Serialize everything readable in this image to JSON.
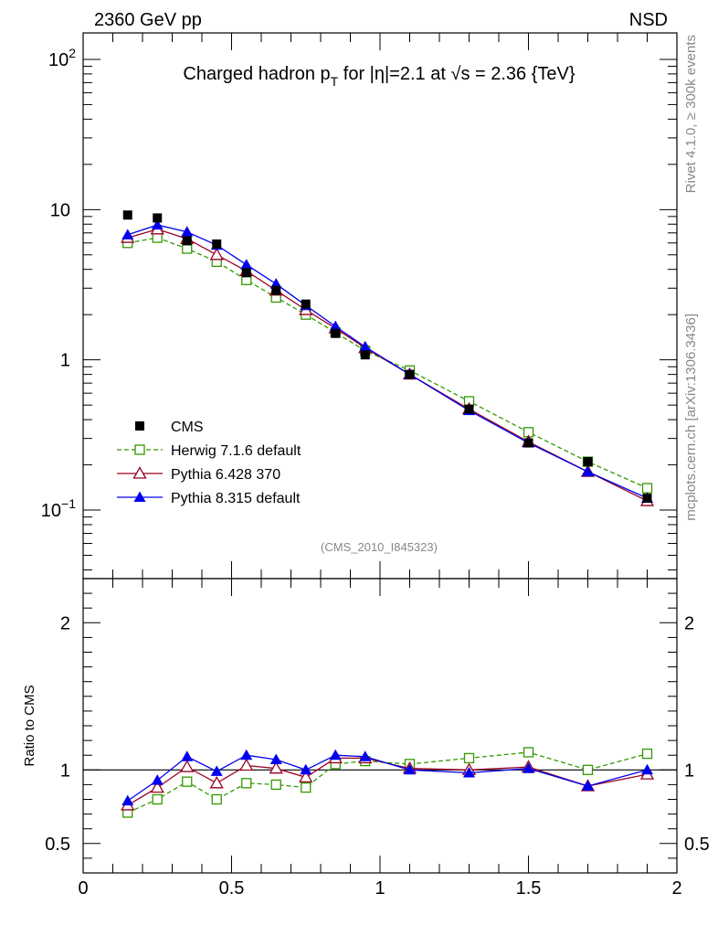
{
  "header": {
    "left_label": "2360 GeV pp",
    "right_label": "NSD",
    "rivet_label": "Rivet 4.1.0, ≥ 300k events",
    "mcplots_label": "mcplots.cern.ch [arXiv:1306.3436]",
    "analysis_id": "(CMS_2010_I845323)"
  },
  "colors": {
    "cms": "#000000",
    "herwig": "#339900",
    "pythia6": "#990022",
    "pythia8": "#0000ee"
  },
  "chart_data": [
    {
      "type": "line",
      "title": "Charged hadron p_T for |η|=2.1 at √s = 2.36 {TeV}",
      "title_parts": {
        "pre": "Charged hadron p",
        "sub": "T",
        "mid": " for |η|=2.1 at ",
        "root": "√",
        "post": "s = 2.36 {TeV}"
      },
      "yscale": "log",
      "ylim": [
        0.035,
        150
      ],
      "xlim": [
        0,
        2
      ],
      "y_ticks": [
        {
          "value": 0.1,
          "base": "10",
          "exp": "−1"
        },
        {
          "value": 1,
          "base": "1",
          "exp": ""
        },
        {
          "value": 10,
          "base": "10",
          "exp": ""
        },
        {
          "value": 100,
          "base": "10",
          "exp": "2"
        }
      ],
      "legend_position": "bottom-left",
      "x": [
        0.15,
        0.25,
        0.35,
        0.45,
        0.55,
        0.65,
        0.75,
        0.85,
        0.95,
        1.1,
        1.3,
        1.5,
        1.7,
        1.9
      ],
      "series": [
        {
          "name": "CMS",
          "style": "data",
          "color": "#000000",
          "marker": "filled-square",
          "values": [
            9.2,
            8.8,
            6.2,
            5.9,
            3.8,
            2.9,
            2.35,
            1.5,
            1.08,
            0.8,
            0.47,
            0.28,
            0.21,
            0.12
          ]
        },
        {
          "name": "Herwig 7.1.6 default",
          "style": "dashed",
          "color": "#339900",
          "marker": "open-square",
          "values": [
            6.0,
            6.5,
            5.5,
            4.5,
            3.4,
            2.6,
            2.0,
            1.52,
            1.15,
            0.85,
            0.53,
            0.33,
            0.21,
            0.14
          ]
        },
        {
          "name": "Pythia 6.428 370",
          "style": "solid",
          "color": "#990022",
          "marker": "open-triangle",
          "values": [
            6.5,
            7.4,
            6.4,
            5.0,
            3.9,
            2.9,
            2.15,
            1.62,
            1.2,
            0.8,
            0.47,
            0.285,
            0.18,
            0.115
          ]
        },
        {
          "name": "Pythia 8.315 default",
          "style": "solid",
          "color": "#0000ee",
          "marker": "filled-triangle",
          "values": [
            6.8,
            7.9,
            7.1,
            5.8,
            4.3,
            3.2,
            2.3,
            1.67,
            1.22,
            0.8,
            0.46,
            0.28,
            0.18,
            0.12
          ]
        }
      ]
    },
    {
      "type": "line",
      "ylabel": "Ratio to CMS",
      "ylim": [
        0.3,
        2.3
      ],
      "xlim": [
        0,
        2
      ],
      "y_ticks": [
        0.5,
        1,
        2
      ],
      "y_tick_labels": [
        "0.5",
        "1",
        "2"
      ],
      "x_ticks": [
        0,
        0.5,
        1,
        1.5,
        2
      ],
      "x_tick_labels": [
        "0",
        "0.5",
        "1",
        "1.5",
        "2"
      ],
      "reference_line": 1,
      "x": [
        0.15,
        0.25,
        0.35,
        0.45,
        0.55,
        0.65,
        0.75,
        0.85,
        0.95,
        1.1,
        1.3,
        1.5,
        1.7,
        1.9
      ],
      "series": [
        {
          "name": "Herwig 7.1.6 default",
          "color": "#339900",
          "style": "dashed",
          "marker": "open-square",
          "values": [
            0.71,
            0.8,
            0.92,
            0.8,
            0.91,
            0.9,
            0.88,
            1.04,
            1.06,
            1.04,
            1.08,
            1.12,
            1.0,
            1.11
          ]
        },
        {
          "name": "Pythia 6.428 370",
          "color": "#990022",
          "style": "solid",
          "marker": "open-triangle",
          "values": [
            0.76,
            0.88,
            1.02,
            0.91,
            1.03,
            1.01,
            0.95,
            1.08,
            1.08,
            1.01,
            1.0,
            1.02,
            0.89,
            0.97
          ]
        },
        {
          "name": "Pythia 8.315 default",
          "color": "#0000ee",
          "style": "solid",
          "marker": "filled-triangle",
          "values": [
            0.79,
            0.93,
            1.09,
            0.99,
            1.1,
            1.07,
            1.0,
            1.1,
            1.09,
            1.0,
            0.98,
            1.01,
            0.89,
            1.0
          ]
        }
      ]
    }
  ]
}
